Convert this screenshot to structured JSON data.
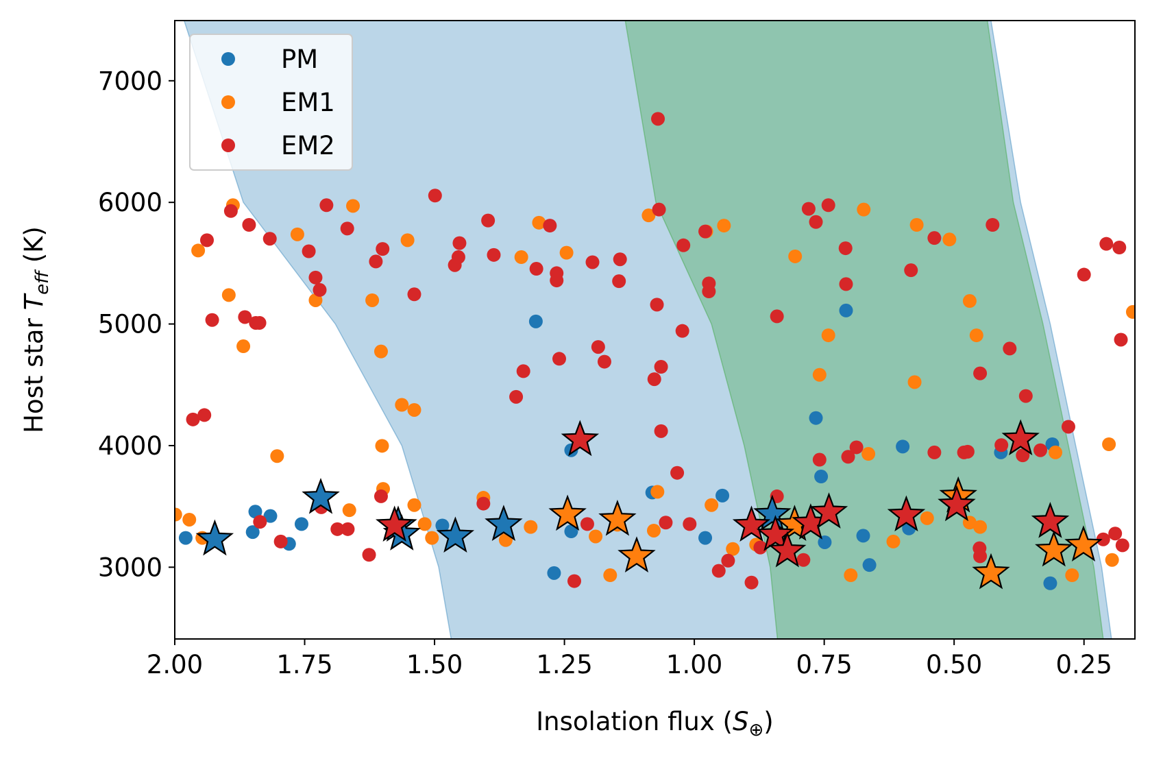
{
  "chart_data": {
    "type": "scatter",
    "x_label": {
      "prefix": "Insolation flux (",
      "symbol": "S",
      "sub": "⊕",
      "suffix": ")"
    },
    "y_label": {
      "prefix": "Host star ",
      "symbol": "T",
      "sub": "eff",
      "suffix": " (K)"
    },
    "xlim": [
      2.0,
      0.152
    ],
    "ylim": [
      2410,
      7495
    ],
    "xticks": [
      {
        "value": 2.0,
        "label": "2.00"
      },
      {
        "value": 1.75,
        "label": "1.75"
      },
      {
        "value": 1.5,
        "label": "1.50"
      },
      {
        "value": 1.25,
        "label": "1.25"
      },
      {
        "value": 1.0,
        "label": "1.00"
      },
      {
        "value": 0.75,
        "label": "0.75"
      },
      {
        "value": 0.5,
        "label": "0.50"
      },
      {
        "value": 0.25,
        "label": "0.25"
      }
    ],
    "yticks": [
      3000,
      4000,
      5000,
      6000,
      7000
    ],
    "legend": "upper left",
    "bands": [
      {
        "color": "#1f77b4",
        "y": [
          7495,
          6000,
          5000,
          4000,
          3000,
          2410
        ],
        "left_x": [
          1.982,
          1.868,
          1.691,
          1.563,
          1.492,
          1.468
        ],
        "right_x": [
          0.429,
          0.372,
          0.315,
          0.266,
          0.216,
          0.197
        ]
      },
      {
        "color": "#2ca02c",
        "y": [
          7495,
          6000,
          5000,
          4000,
          3000,
          2410
        ],
        "left_x": [
          1.133,
          1.074,
          0.967,
          0.904,
          0.854,
          0.84
        ],
        "right_x": [
          0.436,
          0.386,
          0.329,
          0.28,
          0.231,
          0.213
        ]
      }
    ],
    "series": [
      {
        "name": "PM",
        "color": "#1f77b4",
        "x": [
          1.979,
          1.85,
          1.845,
          1.816,
          1.78,
          1.756,
          1.485,
          1.305,
          1.27,
          1.237,
          1.237,
          1.081,
          0.979,
          0.946,
          0.766,
          0.756,
          0.749,
          0.708,
          0.675,
          0.663,
          0.599,
          0.587,
          0.41,
          0.315,
          0.311
        ],
        "y": [
          3241,
          3289,
          3457,
          3421,
          3192,
          3355,
          3343,
          5021,
          2952,
          3962,
          3295,
          3614,
          3241,
          3589,
          4227,
          3746,
          3205,
          5111,
          3259,
          3018,
          3992,
          3319,
          3944,
          2868,
          4011
        ],
        "star_x": [
          1.923,
          1.719,
          1.57,
          1.563,
          1.46,
          1.367,
          0.85
        ],
        "star_y": [
          3229,
          3571,
          3343,
          3271,
          3253,
          3349,
          3433
        ]
      },
      {
        "name": "EM1",
        "color": "#ff7f0e",
        "x": [
          1.999,
          1.972,
          1.955,
          1.947,
          1.896,
          1.888,
          1.868,
          1.803,
          1.764,
          1.729,
          1.657,
          1.664,
          1.62,
          1.603,
          1.601,
          1.599,
          1.563,
          1.552,
          1.539,
          1.539,
          1.519,
          1.505,
          1.406,
          1.363,
          1.333,
          1.315,
          1.299,
          1.246,
          1.19,
          1.162,
          1.148,
          1.088,
          1.078,
          1.071,
          0.977,
          0.967,
          0.943,
          0.926,
          0.881,
          0.806,
          0.759,
          0.742,
          0.699,
          0.674,
          0.665,
          0.617,
          0.576,
          0.572,
          0.552,
          0.509,
          0.47,
          0.47,
          0.457,
          0.45,
          0.305,
          0.273,
          0.202,
          0.196,
          0.156
        ],
        "y": [
          3433,
          3391,
          5604,
          3241,
          5238,
          5977,
          4817,
          3914,
          5737,
          5195,
          5971,
          3469,
          5195,
          4774,
          3998,
          3644,
          4335,
          5689,
          4293,
          3511,
          3355,
          3241,
          3571,
          3223,
          5550,
          3331,
          5833,
          5586,
          3253,
          2934,
          3349,
          5893,
          3301,
          3620,
          5761,
          3511,
          5809,
          3150,
          3186,
          5556,
          4582,
          4907,
          2934,
          5941,
          3932,
          3211,
          4522,
          5815,
          3403,
          5695,
          5189,
          3367,
          4907,
          3331,
          3944,
          2934,
          4011,
          3060,
          5099
        ],
        "star_x": [
          1.244,
          1.148,
          1.111,
          0.807,
          0.492,
          0.429,
          0.308,
          0.251
        ],
        "star_y": [
          3433,
          3391,
          3090,
          3349,
          3583,
          2952,
          3138,
          3180
        ]
      },
      {
        "name": "EM2",
        "color": "#d62728",
        "x": [
          1.965,
          1.943,
          1.938,
          1.928,
          1.892,
          1.865,
          1.857,
          1.844,
          1.837,
          1.836,
          1.817,
          1.796,
          1.742,
          1.729,
          1.721,
          1.708,
          1.718,
          1.687,
          1.668,
          1.667,
          1.626,
          1.613,
          1.603,
          1.6,
          1.539,
          1.499,
          1.461,
          1.454,
          1.452,
          1.406,
          1.397,
          1.386,
          1.343,
          1.329,
          1.304,
          1.278,
          1.265,
          1.265,
          1.26,
          1.231,
          1.206,
          1.196,
          1.185,
          1.173,
          1.145,
          1.143,
          1.077,
          1.072,
          1.07,
          1.068,
          1.064,
          1.064,
          1.055,
          1.033,
          1.023,
          1.021,
          1.009,
          0.979,
          0.972,
          0.972,
          0.953,
          0.935,
          0.89,
          0.873,
          0.841,
          0.841,
          0.79,
          0.78,
          0.766,
          0.759,
          0.742,
          0.709,
          0.708,
          0.704,
          0.688,
          0.583,
          0.538,
          0.538,
          0.481,
          0.474,
          0.45,
          0.451,
          0.45,
          0.426,
          0.409,
          0.393,
          0.362,
          0.368,
          0.334,
          0.28,
          0.25,
          0.213,
          0.207,
          0.19,
          0.182,
          0.179,
          0.176
        ],
        "y": [
          4215,
          4251,
          5689,
          5033,
          5929,
          5057,
          5815,
          5009,
          5009,
          3373,
          5701,
          3211,
          5598,
          5382,
          5280,
          5977,
          3493,
          3313,
          5785,
          3313,
          3102,
          5514,
          3583,
          5617,
          5244,
          6056,
          5484,
          5550,
          5665,
          3523,
          5851,
          5568,
          4401,
          4612,
          5454,
          5809,
          5418,
          5358,
          4714,
          2886,
          3355,
          5508,
          4811,
          4690,
          5352,
          5532,
          4546,
          5159,
          6687,
          5941,
          4648,
          4119,
          3367,
          3776,
          4943,
          5647,
          3355,
          5761,
          5334,
          5268,
          2970,
          3054,
          2874,
          3162,
          5063,
          3583,
          3060,
          5947,
          5839,
          3884,
          5977,
          5623,
          5328,
          3908,
          3986,
          5442,
          3944,
          5707,
          3944,
          3950,
          4594,
          3156,
          3090,
          5815,
          4004,
          4798,
          4408,
          3920,
          3962,
          4155,
          5406,
          3229,
          5659,
          3277,
          5629,
          4871,
          3180
        ],
        "star_x": [
          1.22,
          1.577,
          0.89,
          0.844,
          0.821,
          0.776,
          0.741,
          0.592,
          0.495,
          0.372,
          0.315
        ],
        "star_y": [
          4047,
          3343,
          3343,
          3265,
          3132,
          3361,
          3451,
          3427,
          3511,
          4053,
          3373
        ]
      }
    ]
  }
}
